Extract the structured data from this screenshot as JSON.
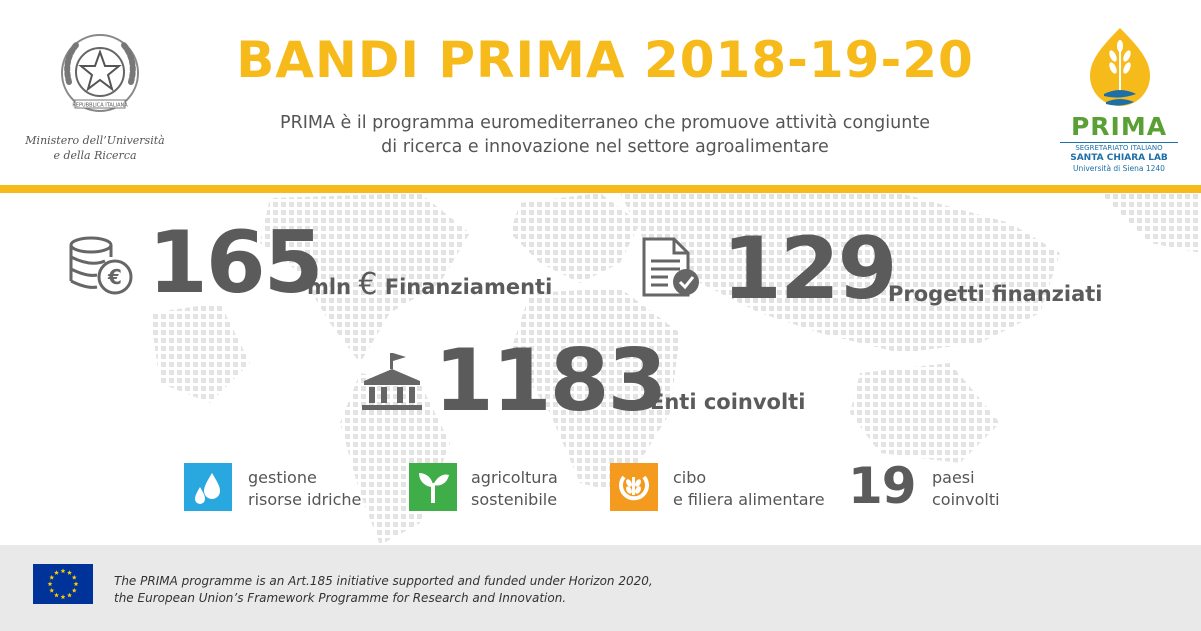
{
  "header": {
    "title": "BANDI PRIMA 2018-19-20",
    "subtitle_line1": "PRIMA è il programma euromediterraneo che promuove attività congiunte",
    "subtitle_line2": "di ricerca e innovazione nel settore agroalimentare",
    "ministry_line1": "Ministero dell’Università",
    "ministry_line2": "e della Ricerca",
    "emblem_text": "REPUBBLICA ITALIANA",
    "prima_logo": {
      "word": "PRIMA",
      "line1": "SEGRETARIATO ITALIANO",
      "line2": "SANTA CHIARA LAB",
      "line3": "Università di Siena 1240"
    }
  },
  "stats": {
    "funding": {
      "value": "165",
      "unit": "mln",
      "currency": "€",
      "label": "Finanziamenti",
      "icon": "coins-euro-icon"
    },
    "projects": {
      "value": "129",
      "label": "Progetti finanziati",
      "icon": "document-check-icon"
    },
    "entities": {
      "value": "1183",
      "label": "Enti coinvolti",
      "icon": "institution-building-icon"
    }
  },
  "themes": [
    {
      "line1": "gestione",
      "line2": "risorse idriche",
      "icon": "water-drops-icon",
      "color": "#29a8e0"
    },
    {
      "line1": "agricoltura",
      "line2": "sostenibile",
      "icon": "plant-icon",
      "color": "#3fae49"
    },
    {
      "line1": "cibo",
      "line2": "e filiera alimentare",
      "icon": "food-chain-icon",
      "color": "#f39a1f"
    }
  ],
  "countries": {
    "value": "19",
    "line1": "paesi",
    "line2": "coinvolti"
  },
  "footer": {
    "line1": "The PRIMA programme is an Art.185 initiative  supported and funded under Horizon 2020,",
    "line2": "the European Union’s Framework Programme for  Research and Innovation."
  },
  "colors": {
    "accent_yellow": "#f6ba1b",
    "text_gray": "#5b5b5b",
    "eu_blue": "#003399",
    "prima_green": "#5aa034",
    "prima_blue": "#1d6fa8"
  }
}
